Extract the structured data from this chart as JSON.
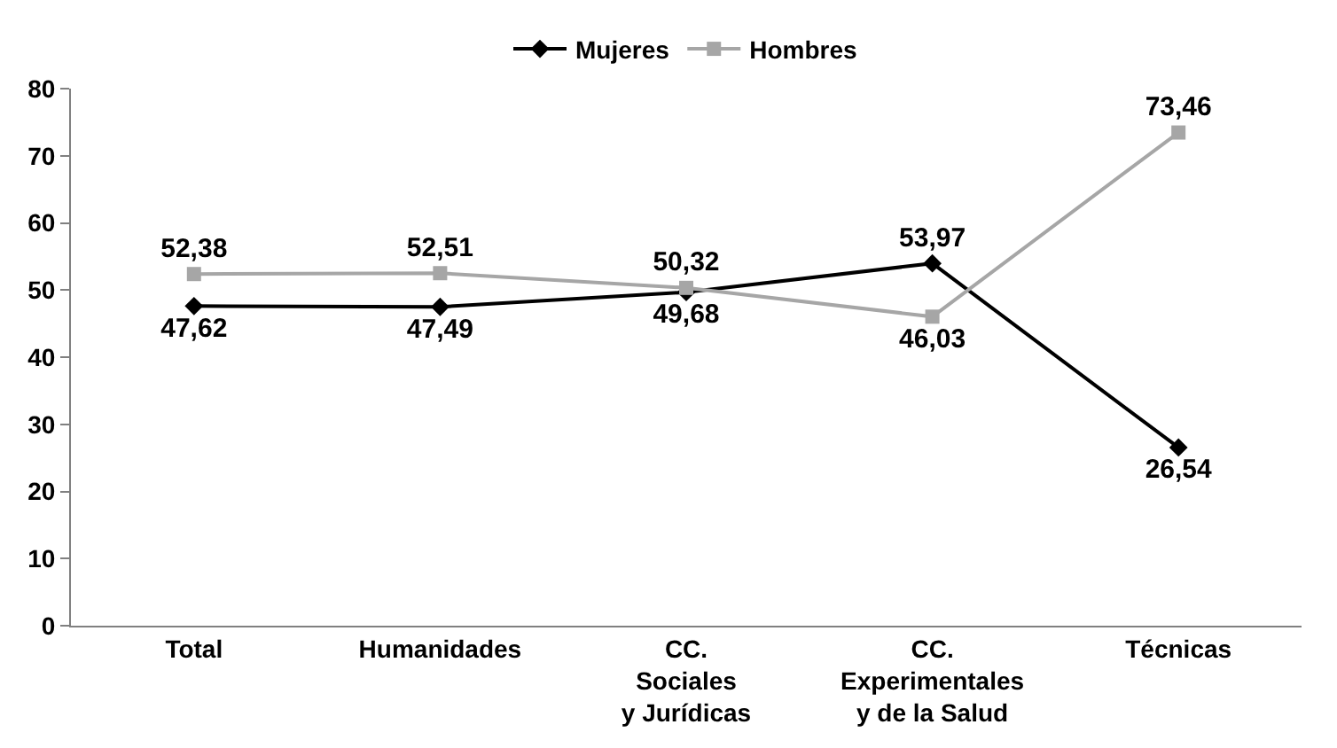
{
  "chart_data": {
    "type": "line",
    "categories": [
      "Total",
      "Humanidades",
      "CC.\nSociales\ny Jurídicas",
      "CC.\nExperimentales\ny de la Salud",
      "Técnicas"
    ],
    "series": [
      {
        "name": "Mujeres",
        "color": "#000000",
        "marker": "diamond",
        "values": [
          47.62,
          47.49,
          49.68,
          53.97,
          26.54
        ],
        "value_labels": [
          "47,62",
          "47,49",
          "49,68",
          "53,97",
          "26,54"
        ]
      },
      {
        "name": "Hombres",
        "color": "#a6a6a6",
        "marker": "square",
        "values": [
          52.38,
          52.51,
          50.32,
          46.03,
          73.46
        ],
        "value_labels": [
          "52,38",
          "52,51",
          "50,32",
          "46,03",
          "73,46"
        ]
      }
    ],
    "ylim": [
      0,
      80
    ],
    "yticks": [
      0,
      10,
      20,
      30,
      40,
      50,
      60,
      70,
      80
    ],
    "legend": "top",
    "line_style": "solid"
  }
}
